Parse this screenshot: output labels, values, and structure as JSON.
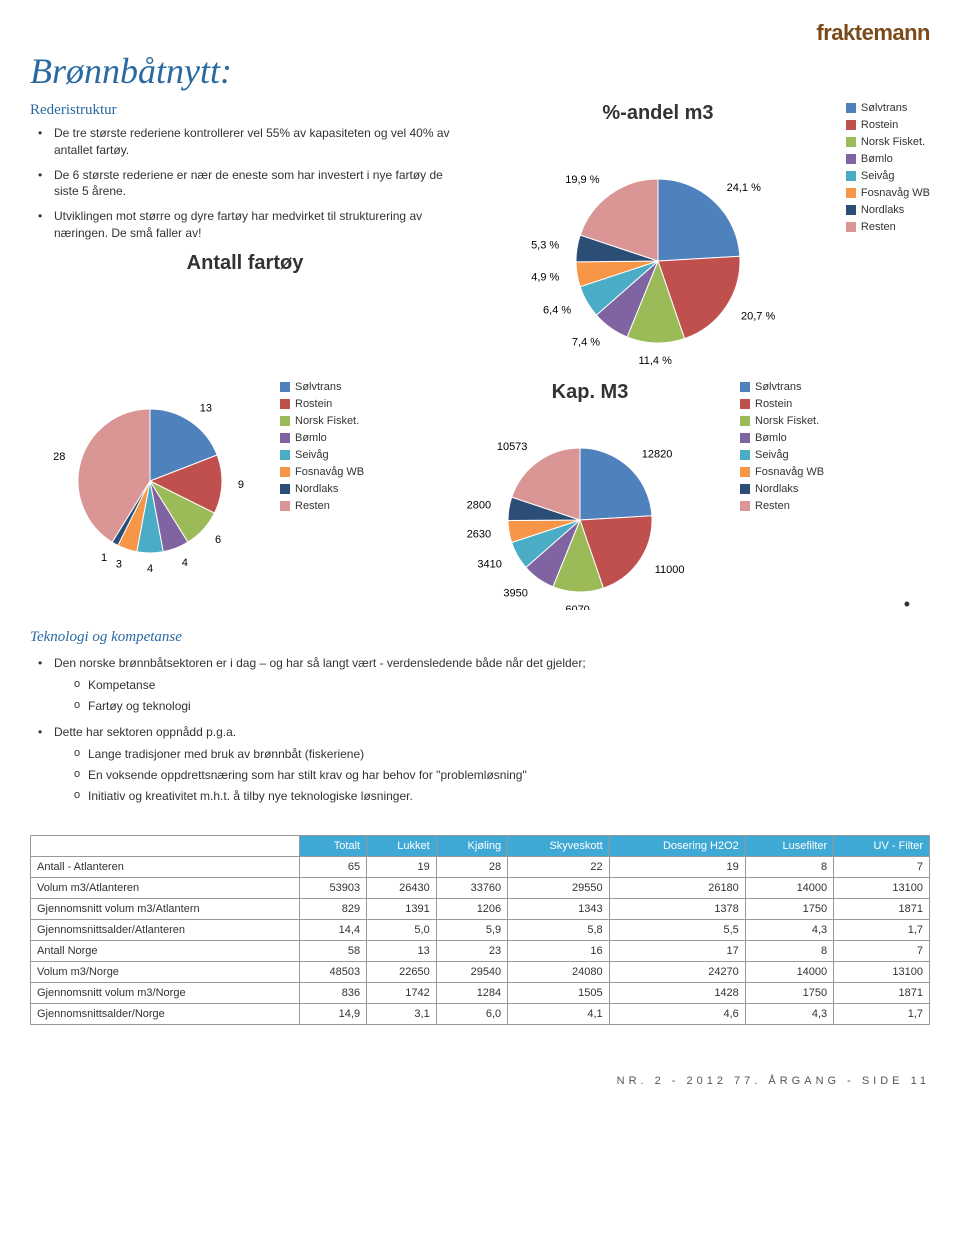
{
  "brand": "fraktemann",
  "title": "Brønnbåtnytt:",
  "leftCol": {
    "subhead": "Rederistruktur",
    "bullets": [
      "De tre største rederiene kontrollerer vel 55% av kapasiteten og vel 40% av antallet fartøy.",
      "De 6 største rederiene er nær de eneste som har investert i nye fartøy de siste 5 årene.",
      "Utviklingen mot større og dyre fartøy har medvirket til strukturering av næringen. De små faller av!"
    ]
  },
  "legend_items": [
    {
      "label": "Sølvtrans",
      "color": "#4f81bd"
    },
    {
      "label": "Rostein",
      "color": "#c0504d"
    },
    {
      "label": "Norsk Fisket.",
      "color": "#9bbb59"
    },
    {
      "label": "Bømlo",
      "color": "#8064a2"
    },
    {
      "label": "Seivåg",
      "color": "#4bacc6"
    },
    {
      "label": "Fosnavåg WB",
      "color": "#f79646"
    },
    {
      "label": "Nordlaks",
      "color": "#2c4d75"
    },
    {
      "label": "Resten",
      "color": "#d99694"
    }
  ],
  "chart1": {
    "title": "%-andel m3",
    "labels": [
      "24,1 %",
      "20,7 %",
      "11,4 %",
      "7,4 %",
      "6,4 %",
      "4,9 %",
      "5,3 %",
      "19,9 %"
    ],
    "values": [
      24.1,
      20.7,
      11.4,
      7.4,
      6.4,
      4.9,
      5.3,
      19.9
    ],
    "colors": [
      "#4f81bd",
      "#c0504d",
      "#9bbb59",
      "#8064a2",
      "#4bacc6",
      "#f79646",
      "#2c4d75",
      "#d99694"
    ]
  },
  "chart2": {
    "title": "Antall fartøy",
    "labels": [
      "13",
      "9",
      "6",
      "4",
      "4",
      "3",
      "1",
      "28"
    ],
    "values": [
      13,
      9,
      6,
      4,
      4,
      3,
      1,
      28
    ],
    "colors": [
      "#4f81bd",
      "#c0504d",
      "#9bbb59",
      "#8064a2",
      "#4bacc6",
      "#f79646",
      "#2c4d75",
      "#d99694"
    ]
  },
  "chart3": {
    "title": "Kap. M3",
    "labels": [
      "12820",
      "11000",
      "6070",
      "3950",
      "3410",
      "2630",
      "2800",
      "10573"
    ],
    "values": [
      12820,
      11000,
      6070,
      3950,
      3410,
      2630,
      2800,
      10573
    ],
    "colors": [
      "#4f81bd",
      "#c0504d",
      "#9bbb59",
      "#8064a2",
      "#4bacc6",
      "#f79646",
      "#2c4d75",
      "#d99694"
    ]
  },
  "techHead": "Teknologi og kompetanse",
  "techBullets": [
    {
      "t": "Den norske brønnbåtsektoren er i dag – og har så langt vært - verdensledende både når det gjelder;",
      "sub": [
        "Kompetanse",
        "Fartøy og teknologi"
      ]
    },
    {
      "t": "Dette har sektoren oppnådd p.g.a.",
      "sub": [
        "Lange tradisjoner med bruk av brønnbåt (fiskeriene)",
        "En voksende oppdrettsnæring som har stilt krav og har behov for \"problemløsning\"",
        "Initiativ og kreativitet m.h.t. å tilby nye teknologiske løsninger."
      ]
    }
  ],
  "table": {
    "columns": [
      "",
      "Totalt",
      "Lukket",
      "Kjøling",
      "Skyveskott",
      "Dosering H2O2",
      "Lusefilter",
      "UV - Filter"
    ],
    "rows": [
      [
        "Antall - Atlanteren",
        "65",
        "19",
        "28",
        "22",
        "19",
        "8",
        "7"
      ],
      [
        "Volum m3/Atlanteren",
        "53903",
        "26430",
        "33760",
        "29550",
        "26180",
        "14000",
        "13100"
      ],
      [
        "Gjennomsnitt volum m3/Atlantern",
        "829",
        "1391",
        "1206",
        "1343",
        "1378",
        "1750",
        "1871"
      ],
      [
        "Gjennomsnittsalder/Atlanteren",
        "14,4",
        "5,0",
        "5,9",
        "5,8",
        "5,5",
        "4,3",
        "1,7"
      ],
      [
        "Antall Norge",
        "58",
        "13",
        "23",
        "16",
        "17",
        "8",
        "7"
      ],
      [
        "Volum m3/Norge",
        "48503",
        "22650",
        "29540",
        "24080",
        "24270",
        "14000",
        "13100"
      ],
      [
        "Gjennomsnitt volum m3/Norge",
        "836",
        "1742",
        "1284",
        "1505",
        "1428",
        "1750",
        "1871"
      ],
      [
        "Gjennomsnittsalder/Norge",
        "14,9",
        "3,1",
        "6,0",
        "4,1",
        "4,6",
        "4,3",
        "1,7"
      ]
    ]
  },
  "footer": "NR. 2 - 2012   77. ÅRGANG - SIDE 11"
}
